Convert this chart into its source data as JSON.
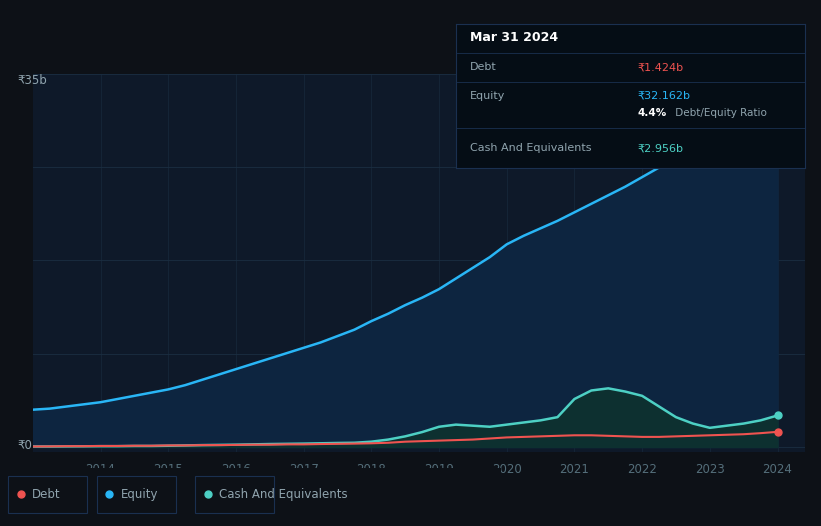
{
  "background_color": "#0d1117",
  "plot_bg_color": "#0e1929",
  "years": [
    2013.0,
    2013.25,
    2013.5,
    2013.75,
    2014.0,
    2014.25,
    2014.5,
    2014.75,
    2015.0,
    2015.25,
    2015.5,
    2015.75,
    2016.0,
    2016.25,
    2016.5,
    2016.75,
    2017.0,
    2017.25,
    2017.5,
    2017.75,
    2018.0,
    2018.25,
    2018.5,
    2018.75,
    2019.0,
    2019.25,
    2019.5,
    2019.75,
    2020.0,
    2020.25,
    2020.5,
    2020.75,
    2021.0,
    2021.25,
    2021.5,
    2021.75,
    2022.0,
    2022.25,
    2022.5,
    2022.75,
    2023.0,
    2023.25,
    2023.5,
    2023.75,
    2024.0
  ],
  "equity": [
    3.5,
    3.6,
    3.8,
    4.0,
    4.2,
    4.5,
    4.8,
    5.1,
    5.4,
    5.8,
    6.3,
    6.8,
    7.3,
    7.8,
    8.3,
    8.8,
    9.3,
    9.8,
    10.4,
    11.0,
    11.8,
    12.5,
    13.3,
    14.0,
    14.8,
    15.8,
    16.8,
    17.8,
    19.0,
    19.8,
    20.5,
    21.2,
    22.0,
    22.8,
    23.6,
    24.4,
    25.3,
    26.2,
    27.2,
    28.2,
    29.2,
    30.0,
    30.8,
    31.5,
    32.162
  ],
  "debt": [
    0.05,
    0.06,
    0.08,
    0.08,
    0.1,
    0.1,
    0.12,
    0.12,
    0.15,
    0.15,
    0.18,
    0.18,
    0.2,
    0.22,
    0.22,
    0.25,
    0.25,
    0.28,
    0.3,
    0.32,
    0.35,
    0.4,
    0.5,
    0.55,
    0.6,
    0.65,
    0.7,
    0.8,
    0.9,
    0.95,
    1.0,
    1.05,
    1.1,
    1.1,
    1.05,
    1.0,
    0.95,
    0.95,
    1.0,
    1.05,
    1.1,
    1.15,
    1.2,
    1.3,
    1.424
  ],
  "cash": [
    0.05,
    0.05,
    0.06,
    0.07,
    0.08,
    0.08,
    0.1,
    0.1,
    0.12,
    0.15,
    0.18,
    0.2,
    0.22,
    0.25,
    0.28,
    0.3,
    0.32,
    0.35,
    0.38,
    0.4,
    0.5,
    0.7,
    1.0,
    1.4,
    1.9,
    2.1,
    2.0,
    1.9,
    2.1,
    2.3,
    2.5,
    2.8,
    4.5,
    5.3,
    5.5,
    5.2,
    4.8,
    3.8,
    2.8,
    2.2,
    1.8,
    2.0,
    2.2,
    2.5,
    2.956
  ],
  "xlim": [
    2013.0,
    2024.4
  ],
  "ylim": [
    -0.5,
    35
  ],
  "equity_color": "#29b6f6",
  "equity_fill_color": "#0d2540",
  "debt_color": "#ef5350",
  "cash_color": "#4dd0c4",
  "cash_fill_color": "#0d3030",
  "grid_color": "#1a2e42",
  "text_color": "#90a4ae",
  "tick_color": "#546e7a",
  "tooltip_bg": "#050d15",
  "tooltip_border_color": "#1a3050",
  "tooltip_title": "Mar 31 2024",
  "tooltip_debt_label": "Debt",
  "tooltip_debt_value": "₹1.424b",
  "tooltip_equity_label": "Equity",
  "tooltip_equity_value": "₹32.162b",
  "tooltip_ratio_pct": "4.4%",
  "tooltip_ratio_text": " Debt/Equity Ratio",
  "tooltip_cash_label": "Cash And Equivalents",
  "tooltip_cash_value": "₹2.956b",
  "ytop_label": "₹35b",
  "y0_label": "₹0",
  "legend_labels": [
    "Debt",
    "Equity",
    "Cash And Equivalents"
  ],
  "x_tick_years": [
    2014,
    2015,
    2016,
    2017,
    2018,
    2019,
    2020,
    2021,
    2022,
    2023,
    2024
  ]
}
